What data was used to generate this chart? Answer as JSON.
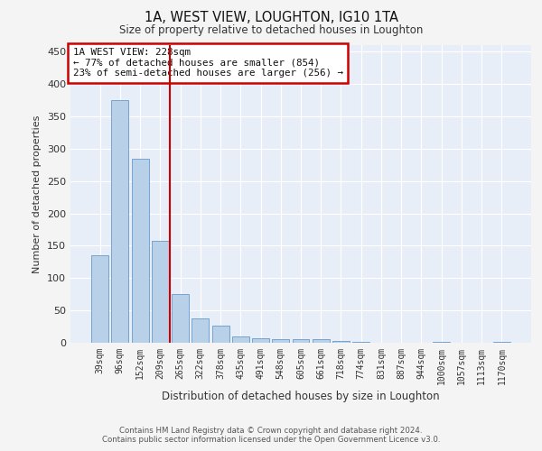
{
  "title": "1A, WEST VIEW, LOUGHTON, IG10 1TA",
  "subtitle": "Size of property relative to detached houses in Loughton",
  "xlabel": "Distribution of detached houses by size in Loughton",
  "ylabel": "Number of detached properties",
  "categories": [
    "39sqm",
    "96sqm",
    "152sqm",
    "209sqm",
    "265sqm",
    "322sqm",
    "378sqm",
    "435sqm",
    "491sqm",
    "548sqm",
    "605sqm",
    "661sqm",
    "718sqm",
    "774sqm",
    "831sqm",
    "887sqm",
    "944sqm",
    "1000sqm",
    "1057sqm",
    "1113sqm",
    "1170sqm"
  ],
  "values": [
    135,
    375,
    285,
    157,
    75,
    38,
    27,
    10,
    7,
    5,
    5,
    5,
    3,
    1,
    0,
    0,
    0,
    1,
    0,
    0,
    1
  ],
  "bar_color": "#b8d0e8",
  "bar_edge_color": "#6699cc",
  "background_color": "#e8eef8",
  "grid_color": "#ffffff",
  "red_line_x": 3.5,
  "annotation_text": "1A WEST VIEW: 228sqm\n← 77% of detached houses are smaller (854)\n23% of semi-detached houses are larger (256) →",
  "annotation_box_facecolor": "#ffffff",
  "annotation_box_edgecolor": "#cc0000",
  "ylim": [
    0,
    460
  ],
  "yticks": [
    0,
    50,
    100,
    150,
    200,
    250,
    300,
    350,
    400,
    450
  ],
  "fig_facecolor": "#f4f4f4",
  "footer_line1": "Contains HM Land Registry data © Crown copyright and database right 2024.",
  "footer_line2": "Contains public sector information licensed under the Open Government Licence v3.0."
}
